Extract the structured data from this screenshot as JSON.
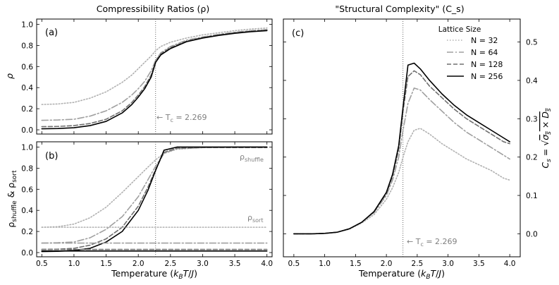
{
  "chart_data": [
    {
      "id": "a",
      "type": "line",
      "title": "Compressibility Ratios (ρ)",
      "panel_label": "(a)",
      "xlabel": "",
      "ylabel": "ρ",
      "xlim": [
        0.42,
        4.08
      ],
      "ylim": [
        -0.04,
        1.05
      ],
      "xticks": [
        0.5,
        1.0,
        1.5,
        2.0,
        2.5,
        3.0,
        3.5,
        4.0
      ],
      "yticks": [
        0.0,
        0.2,
        0.4,
        0.6,
        0.8,
        1.0
      ],
      "ytick_labels": [
        "0.0",
        "0.2",
        "0.4",
        "0.6",
        "0.8",
        "1.0"
      ],
      "vline": {
        "x": 2.269,
        "label": "← T_c = 2.269"
      },
      "series": [
        {
          "name": "N = 32",
          "x": [
            0.5,
            0.75,
            1.0,
            1.25,
            1.5,
            1.75,
            1.9,
            2.0,
            2.1,
            2.2,
            2.27,
            2.35,
            2.5,
            2.75,
            3.0,
            3.25,
            3.5,
            3.75,
            4.0
          ],
          "y": [
            0.24,
            0.245,
            0.26,
            0.3,
            0.36,
            0.45,
            0.52,
            0.58,
            0.64,
            0.7,
            0.75,
            0.79,
            0.83,
            0.87,
            0.9,
            0.92,
            0.94,
            0.955,
            0.965
          ]
        },
        {
          "name": "N = 64",
          "x": [
            0.5,
            0.75,
            1.0,
            1.25,
            1.5,
            1.75,
            1.9,
            2.0,
            2.1,
            2.2,
            2.27,
            2.35,
            2.5,
            2.75,
            3.0,
            3.25,
            3.5,
            3.75,
            4.0
          ],
          "y": [
            0.09,
            0.093,
            0.1,
            0.13,
            0.18,
            0.26,
            0.33,
            0.39,
            0.46,
            0.56,
            0.66,
            0.73,
            0.79,
            0.85,
            0.88,
            0.905,
            0.925,
            0.94,
            0.95
          ]
        },
        {
          "name": "N = 128",
          "x": [
            0.5,
            0.75,
            1.0,
            1.25,
            1.5,
            1.75,
            1.9,
            2.0,
            2.1,
            2.2,
            2.27,
            2.35,
            2.5,
            2.75,
            3.0,
            3.25,
            3.5,
            3.75,
            4.0
          ],
          "y": [
            0.03,
            0.032,
            0.04,
            0.06,
            0.1,
            0.18,
            0.26,
            0.33,
            0.41,
            0.52,
            0.65,
            0.72,
            0.78,
            0.84,
            0.875,
            0.9,
            0.92,
            0.935,
            0.945
          ]
        },
        {
          "name": "N = 256",
          "x": [
            0.5,
            0.75,
            1.0,
            1.25,
            1.5,
            1.75,
            1.9,
            2.0,
            2.1,
            2.2,
            2.27,
            2.35,
            2.5,
            2.75,
            3.0,
            3.25,
            3.5,
            3.75,
            4.0
          ],
          "y": [
            0.01,
            0.012,
            0.02,
            0.04,
            0.08,
            0.16,
            0.24,
            0.31,
            0.39,
            0.5,
            0.64,
            0.71,
            0.77,
            0.835,
            0.87,
            0.895,
            0.915,
            0.93,
            0.94
          ]
        }
      ]
    },
    {
      "id": "b",
      "type": "line",
      "title": "",
      "panel_label": "(b)",
      "xlabel": "Temperature (k_BT/J)",
      "ylabel": "ρ_shuffle & ρ_sort",
      "xlim": [
        0.42,
        4.08
      ],
      "ylim": [
        -0.04,
        1.05
      ],
      "xticks": [
        0.5,
        1.0,
        1.5,
        2.0,
        2.5,
        3.0,
        3.5,
        4.0
      ],
      "xtick_labels": [
        "0.5",
        "1.0",
        "1.5",
        "2.0",
        "2.5",
        "3.0",
        "3.5",
        "4.0"
      ],
      "yticks": [
        0.0,
        0.2,
        0.4,
        0.6,
        0.8,
        1.0
      ],
      "ytick_labels": [
        "0.0",
        "0.2",
        "0.4",
        "0.6",
        "0.8",
        "1.0"
      ],
      "vline": {
        "x": 2.269
      },
      "annotations": [
        {
          "text": "ρ_shuffle",
          "x": 3.75,
          "y": 0.93
        },
        {
          "text": "ρ_sort",
          "x": 3.85,
          "y": 0.31
        }
      ],
      "series": [
        {
          "name": "N = 32",
          "role": "shuffle",
          "x": [
            0.5,
            0.75,
            1.0,
            1.25,
            1.5,
            1.75,
            2.0,
            2.15,
            2.27,
            2.4,
            2.6,
            3.0,
            3.5,
            4.0
          ],
          "y": [
            0.24,
            0.245,
            0.27,
            0.33,
            0.43,
            0.57,
            0.72,
            0.81,
            0.88,
            0.94,
            0.98,
            0.995,
            1.0,
            1.0
          ]
        },
        {
          "name": "N = 64",
          "role": "shuffle",
          "x": [
            0.5,
            0.75,
            1.0,
            1.25,
            1.5,
            1.75,
            2.0,
            2.15,
            2.27,
            2.4,
            2.6,
            3.0,
            3.5,
            4.0
          ],
          "y": [
            0.09,
            0.093,
            0.1,
            0.14,
            0.22,
            0.34,
            0.53,
            0.69,
            0.82,
            0.94,
            0.985,
            0.995,
            1.0,
            1.0
          ]
        },
        {
          "name": "N = 128",
          "role": "shuffle",
          "x": [
            0.5,
            0.75,
            1.0,
            1.25,
            1.5,
            1.75,
            2.0,
            2.15,
            2.27,
            2.4,
            2.6,
            3.0,
            3.5,
            4.0
          ],
          "y": [
            0.03,
            0.032,
            0.04,
            0.07,
            0.13,
            0.24,
            0.44,
            0.62,
            0.79,
            0.95,
            0.99,
            0.995,
            0.995,
            0.995
          ]
        },
        {
          "name": "N = 256",
          "role": "shuffle",
          "x": [
            0.5,
            0.75,
            1.0,
            1.25,
            1.5,
            1.75,
            2.0,
            2.15,
            2.27,
            2.4,
            2.6,
            3.0,
            3.5,
            4.0
          ],
          "y": [
            0.01,
            0.012,
            0.02,
            0.04,
            0.1,
            0.2,
            0.4,
            0.59,
            0.78,
            0.97,
            1.0,
            1.0,
            1.0,
            1.0
          ]
        },
        {
          "name": "N = 32",
          "role": "sort",
          "x": [
            0.5,
            4.0
          ],
          "y": [
            0.24,
            0.24
          ]
        },
        {
          "name": "N = 64",
          "role": "sort",
          "x": [
            0.5,
            4.0
          ],
          "y": [
            0.09,
            0.09
          ]
        },
        {
          "name": "N = 128",
          "role": "sort",
          "x": [
            0.5,
            4.0
          ],
          "y": [
            0.03,
            0.03
          ]
        },
        {
          "name": "N = 256",
          "role": "sort",
          "x": [
            0.5,
            4.0
          ],
          "y": [
            0.015,
            0.015
          ]
        }
      ]
    },
    {
      "id": "c",
      "type": "line",
      "title": "\"Structural Complexity\" (C_s)",
      "panel_label": "(c)",
      "xlabel": "Temperature (k_BT/J)",
      "ylabel": "C_s = √(σ_s × D_s)",
      "xlim": [
        0.33,
        4.17
      ],
      "ylim": [
        -0.06,
        0.56
      ],
      "xticks": [
        0.5,
        1.0,
        1.5,
        2.0,
        2.5,
        3.0,
        3.5,
        4.0
      ],
      "xtick_labels": [
        "0.5",
        "1.0",
        "1.5",
        "2.0",
        "2.5",
        "3.0",
        "3.5",
        "4.0"
      ],
      "yticks": [
        0.0,
        0.1,
        0.2,
        0.3,
        0.4,
        0.5
      ],
      "ytick_labels": [
        "0.0",
        "0.1",
        "0.2",
        "0.3",
        "0.4",
        "0.5"
      ],
      "vline": {
        "x": 2.269,
        "label": "← T_c = 2.269"
      },
      "legend": {
        "title": "Lattice Size",
        "position": "top-right"
      },
      "series": [
        {
          "name": "N = 32",
          "x": [
            0.5,
            0.8,
            1.0,
            1.2,
            1.4,
            1.6,
            1.8,
            2.0,
            2.1,
            2.2,
            2.27,
            2.35,
            2.45,
            2.55,
            2.7,
            2.9,
            3.1,
            3.3,
            3.5,
            3.7,
            3.9,
            4.0
          ],
          "y": [
            0.0,
            0.0,
            0.001,
            0.004,
            0.012,
            0.028,
            0.05,
            0.09,
            0.12,
            0.16,
            0.2,
            0.24,
            0.27,
            0.275,
            0.26,
            0.235,
            0.215,
            0.195,
            0.18,
            0.165,
            0.145,
            0.14
          ]
        },
        {
          "name": "N = 64",
          "x": [
            0.5,
            0.8,
            1.0,
            1.2,
            1.4,
            1.6,
            1.8,
            2.0,
            2.1,
            2.2,
            2.27,
            2.35,
            2.45,
            2.55,
            2.7,
            2.9,
            3.1,
            3.3,
            3.5,
            3.7,
            3.9,
            4.0
          ],
          "y": [
            0.0,
            0.0,
            0.001,
            0.004,
            0.013,
            0.03,
            0.055,
            0.1,
            0.14,
            0.2,
            0.27,
            0.34,
            0.38,
            0.375,
            0.35,
            0.32,
            0.29,
            0.265,
            0.245,
            0.225,
            0.205,
            0.195
          ]
        },
        {
          "name": "N = 128",
          "x": [
            0.5,
            0.8,
            1.0,
            1.2,
            1.4,
            1.6,
            1.8,
            2.0,
            2.1,
            2.2,
            2.27,
            2.35,
            2.45,
            2.55,
            2.7,
            2.9,
            3.1,
            3.3,
            3.5,
            3.7,
            3.9,
            4.0
          ],
          "y": [
            0.0,
            0.0,
            0.001,
            0.004,
            0.013,
            0.03,
            0.057,
            0.105,
            0.15,
            0.22,
            0.32,
            0.41,
            0.425,
            0.415,
            0.385,
            0.355,
            0.325,
            0.3,
            0.28,
            0.26,
            0.24,
            0.235
          ]
        },
        {
          "name": "N = 256",
          "x": [
            0.5,
            0.8,
            1.0,
            1.2,
            1.4,
            1.6,
            1.8,
            2.0,
            2.1,
            2.2,
            2.27,
            2.35,
            2.45,
            2.55,
            2.7,
            2.9,
            3.1,
            3.3,
            3.5,
            3.7,
            3.9,
            4.0
          ],
          "y": [
            0.0,
            0.0,
            0.001,
            0.004,
            0.013,
            0.03,
            0.058,
            0.108,
            0.155,
            0.23,
            0.33,
            0.44,
            0.445,
            0.43,
            0.4,
            0.365,
            0.335,
            0.31,
            0.29,
            0.27,
            0.25,
            0.24
          ]
        }
      ]
    }
  ],
  "styles": {
    "N = 32": {
      "color": "#b0b0b0",
      "dash": "1.5,2.5",
      "width": 1.6
    },
    "N = 64": {
      "color": "#a0a0a0",
      "dash": "9,3,2,3",
      "width": 1.6
    },
    "N = 128": {
      "color": "#707070",
      "dash": "6,3",
      "width": 1.6
    },
    "N = 256": {
      "color": "#000000",
      "dash": "",
      "width": 1.6
    }
  }
}
